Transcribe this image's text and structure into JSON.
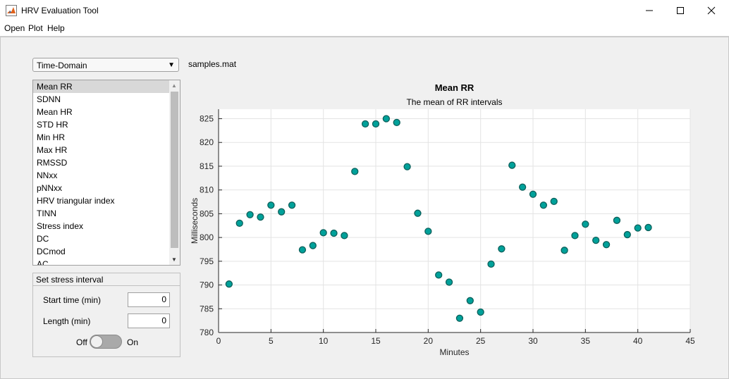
{
  "window": {
    "title": "HRV Evaluation Tool"
  },
  "menu": {
    "items": [
      "Open",
      "Plot",
      "Help"
    ]
  },
  "dropdown": {
    "selected": "Time-Domain"
  },
  "file": {
    "name": "samples.mat"
  },
  "measures": {
    "items": [
      "Mean RR",
      "SDNN",
      "Mean HR",
      "STD HR",
      "Min HR",
      "Max HR",
      "RMSSD",
      "NNxx",
      "pNNxx",
      "HRV triangular index",
      "TINN",
      "Stress index",
      "DC",
      "DCmod",
      "AC"
    ],
    "selected_index": 0
  },
  "stress_panel": {
    "title": "Set stress interval",
    "start_label": "Start time (min)",
    "start_value": "0",
    "length_label": "Length (min)",
    "length_value": "0",
    "switch_off_label": "Off",
    "switch_on_label": "On",
    "switch_state": "Off"
  },
  "colors": {
    "marker_fill": "#00a19a",
    "marker_edge": "#0b5f5a",
    "accent": "#2f6db5"
  },
  "chart_data": {
    "type": "scatter",
    "title": "Mean RR",
    "subtitle": "The mean of RR intervals",
    "xlabel": "Minutes",
    "ylabel": "Milliseconds",
    "xlim": [
      0,
      45
    ],
    "ylim": [
      780,
      827
    ],
    "xticks": [
      0,
      5,
      10,
      15,
      20,
      25,
      30,
      35,
      40,
      45
    ],
    "yticks": [
      780,
      785,
      790,
      795,
      800,
      805,
      810,
      815,
      820,
      825
    ],
    "grid": true,
    "x": [
      1,
      2,
      3,
      4,
      5,
      6,
      7,
      8,
      9,
      10,
      11,
      12,
      13,
      14,
      15,
      16,
      17,
      18,
      19,
      20,
      21,
      22,
      23,
      24,
      25,
      26,
      27,
      28,
      29,
      30,
      31,
      32,
      33,
      34,
      35,
      36,
      37,
      38,
      39,
      40,
      41
    ],
    "y": [
      790.2,
      803,
      804.8,
      804.3,
      806.8,
      805.4,
      806.8,
      797.4,
      798.3,
      801,
      800.9,
      800.4,
      813.9,
      823.9,
      823.9,
      825,
      824.2,
      814.9,
      805.1,
      801.3,
      792.1,
      790.6,
      783,
      786.7,
      784.3,
      794.4,
      797.6,
      815.2,
      810.6,
      809.1,
      806.8,
      807.6,
      797.3,
      800.4,
      802.8,
      799.4,
      798.5,
      803.6,
      800.6,
      802,
      802.1
    ]
  }
}
